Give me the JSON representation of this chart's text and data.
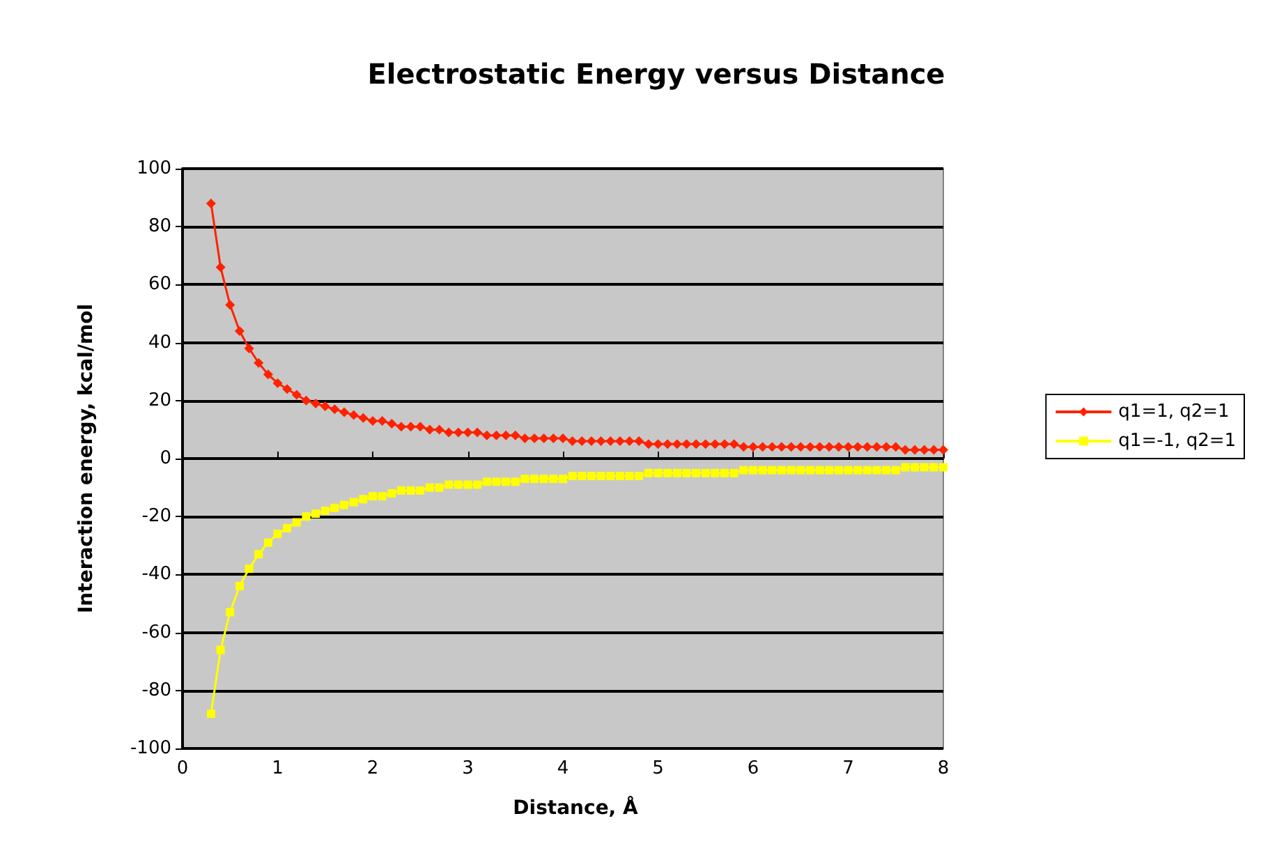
{
  "chart_data": {
    "type": "line",
    "title": "Electrostatic Energy versus Distance",
    "xlabel": "Distance, Å",
    "ylabel": "Interaction energy, kcal/mol",
    "x": [
      0.3,
      0.4,
      0.5,
      0.6,
      0.7,
      0.8,
      0.9,
      1.0,
      1.1,
      1.2,
      1.3,
      1.4,
      1.5,
      1.6,
      1.7,
      1.8,
      1.9,
      2.0,
      2.1,
      2.2,
      2.3,
      2.4,
      2.5,
      2.6,
      2.7,
      2.8,
      2.9,
      3.0,
      3.1,
      3.2,
      3.3,
      3.4,
      3.5,
      3.6,
      3.7,
      3.8,
      3.9,
      4.0,
      4.1,
      4.2,
      4.3,
      4.4,
      4.5,
      4.6,
      4.7,
      4.8,
      4.9,
      5.0,
      5.1,
      5.2,
      5.3,
      5.4,
      5.5,
      5.6,
      5.7,
      5.8,
      5.9,
      6.0,
      6.1,
      6.2,
      6.3,
      6.4,
      6.5,
      6.6,
      6.7,
      6.8,
      6.9,
      7.0,
      7.1,
      7.2,
      7.3,
      7.4,
      7.5,
      7.6,
      7.7,
      7.8,
      7.9,
      8.0
    ],
    "series": [
      {
        "name": "q1=1, q2=1",
        "color": "#ff2200",
        "marker": "diamond",
        "values": [
          88,
          66,
          53,
          44,
          38,
          33,
          29,
          26,
          24,
          22,
          20,
          19,
          18,
          17,
          16,
          15,
          14,
          13,
          13,
          12,
          11,
          11,
          11,
          10,
          10,
          9,
          9,
          9,
          9,
          8,
          8,
          8,
          8,
          7,
          7,
          7,
          7,
          7,
          6,
          6,
          6,
          6,
          6,
          6,
          6,
          6,
          5,
          5,
          5,
          5,
          5,
          5,
          5,
          5,
          5,
          5,
          4,
          4,
          4,
          4,
          4,
          4,
          4,
          4,
          4,
          4,
          4,
          4,
          4,
          4,
          4,
          4,
          4,
          3,
          3,
          3,
          3,
          3
        ]
      },
      {
        "name": "q1=-1, q2=1",
        "color": "#ffff00",
        "marker": "square",
        "values": [
          -88,
          -66,
          -53,
          -44,
          -38,
          -33,
          -29,
          -26,
          -24,
          -22,
          -20,
          -19,
          -18,
          -17,
          -16,
          -15,
          -14,
          -13,
          -13,
          -12,
          -11,
          -11,
          -11,
          -10,
          -10,
          -9,
          -9,
          -9,
          -9,
          -8,
          -8,
          -8,
          -8,
          -7,
          -7,
          -7,
          -7,
          -7,
          -6,
          -6,
          -6,
          -6,
          -6,
          -6,
          -6,
          -6,
          -5,
          -5,
          -5,
          -5,
          -5,
          -5,
          -5,
          -5,
          -5,
          -5,
          -4,
          -4,
          -4,
          -4,
          -4,
          -4,
          -4,
          -4,
          -4,
          -4,
          -4,
          -4,
          -4,
          -4,
          -4,
          -4,
          -4,
          -3,
          -3,
          -3,
          -3,
          -3
        ]
      }
    ],
    "xlim": [
      0,
      8
    ],
    "xticks": [
      0,
      1,
      2,
      3,
      4,
      5,
      6,
      7,
      8
    ],
    "ylim": [
      -100,
      100
    ],
    "yticks": [
      -100,
      -80,
      -60,
      -40,
      -20,
      0,
      20,
      40,
      60,
      80,
      100
    ],
    "grid": "y",
    "legend": "right"
  }
}
